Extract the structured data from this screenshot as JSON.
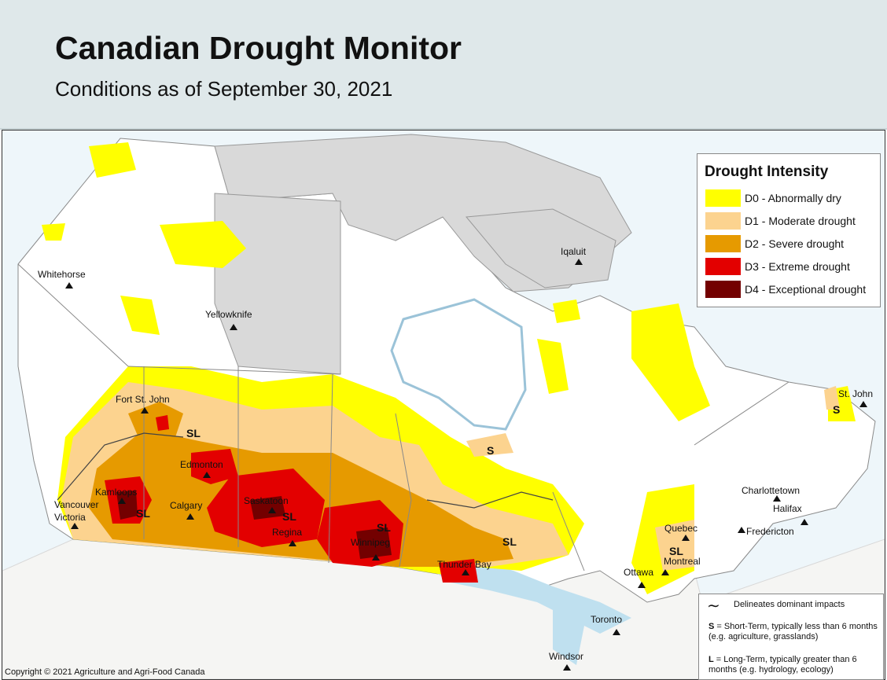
{
  "header": {
    "title": "Canadian Drought Monitor",
    "subtitle": "Conditions as of September 30, 2021"
  },
  "legend": {
    "title": "Drought Intensity",
    "items": [
      {
        "label": "D0 - Abnormally dry",
        "color": "#ffff00"
      },
      {
        "label": "D1 - Moderate drought",
        "color": "#fcd38f"
      },
      {
        "label": "D2 - Severe drought",
        "color": "#e69a00"
      },
      {
        "label": "D3 - Extreme drought",
        "color": "#e30000"
      },
      {
        "label": "D4 - Exceptional drought",
        "color": "#730000"
      }
    ]
  },
  "impacts": {
    "line": "Delineates dominant impacts",
    "short_key": "S",
    "short_text": " = Short-Term, typically less than 6 months (e.g. agriculture, grasslands)",
    "long_key": "L",
    "long_text": " = Long-Term, typically greater  than 6 months (e.g. hydrology, ecology)"
  },
  "cities": {
    "whitehorse": "Whitehorse",
    "yellowknife": "Yellowknife",
    "iqaluit": "Iqaluit",
    "fort_st_john": "Fort St. John",
    "edmonton": "Edmonton",
    "calgary": "Calgary",
    "kamloops": "Kamloops",
    "vancouver": "Vancouver",
    "victoria": "Victoria",
    "saskatoon": "Saskatoon",
    "regina": "Regina",
    "winnipeg": "Winnipeg",
    "thunder_bay": "Thunder Bay",
    "ottawa": "Ottawa",
    "toronto": "Toronto",
    "windsor": "Windsor",
    "montreal": "Montreal",
    "quebec": "Quebec",
    "charlottetown": "Charlottetown",
    "halifax": "Halifax",
    "fredericton": "Fredericton",
    "st_john": "St. John"
  },
  "impact_labels": {
    "sl": "SL",
    "s": "S"
  },
  "copyright": "Copyright © 2021 Agriculture and Agri-Food Canada"
}
